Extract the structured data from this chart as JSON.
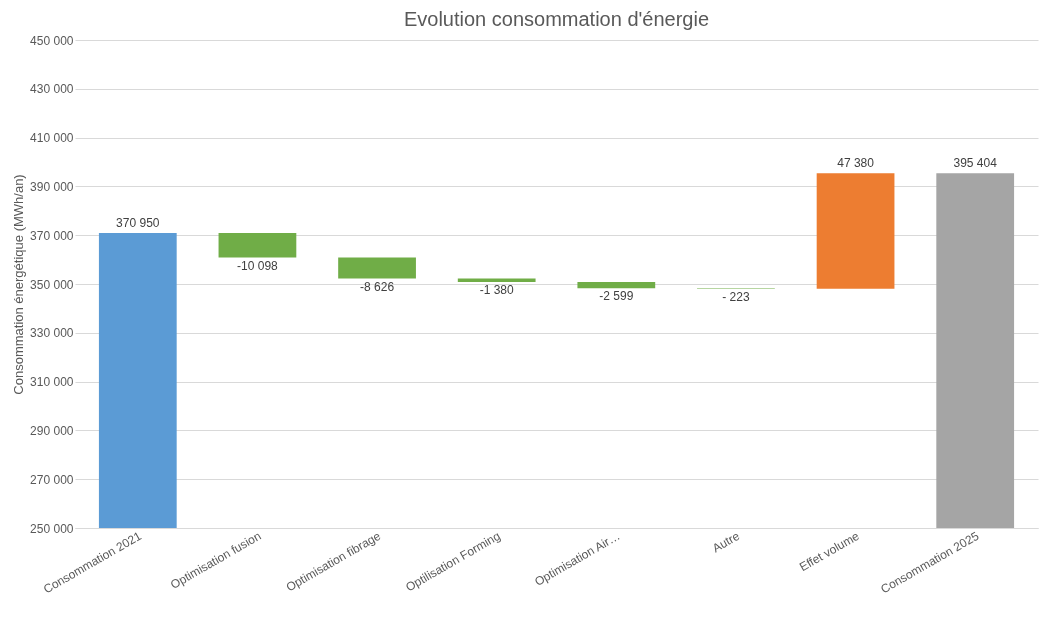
{
  "chart_data": {
    "type": "bar",
    "title": "Evolution consommation d'énergie",
    "ylabel": "Consommation énergétique (MWh/an)",
    "categories": [
      "Consommation 2021",
      "Optimisation fusion",
      "Optimisation fibrage",
      "Optilisation Forming",
      "Optimisation Air…",
      "Autre",
      "Effet volume",
      "Consommation 2025"
    ],
    "values": [
      370950,
      -10098,
      -8626,
      -1380,
      -2599,
      -223,
      47380,
      395404
    ],
    "base": [
      null,
      370950,
      360852,
      352226,
      350846,
      348247,
      348024,
      null
    ],
    "colors": [
      "#5b9bd5",
      "#70ad47",
      "#70ad47",
      "#70ad47",
      "#70ad47",
      "#70ad47",
      "#ed7d31",
      "#a5a5a5"
    ],
    "value_labels": [
      "370 950",
      "-10 098",
      "-8 626",
      "-1 380",
      "-2 599",
      "- 223",
      "47 380",
      "395 404"
    ],
    "ylim": [
      250000,
      450000
    ],
    "yticks": [
      {
        "value": 250000,
        "label": "250 000"
      },
      {
        "value": 270000,
        "label": "270 000"
      },
      {
        "value": 290000,
        "label": "290 000"
      },
      {
        "value": 310000,
        "label": "310 000"
      },
      {
        "value": 330000,
        "label": "330 000"
      },
      {
        "value": 350000,
        "label": "350 000"
      },
      {
        "value": 370000,
        "label": "370 000"
      },
      {
        "value": 390000,
        "label": "390 000"
      },
      {
        "value": 410000,
        "label": "410 000"
      },
      {
        "value": 430000,
        "label": "430 000"
      },
      {
        "value": 450000,
        "label": "450 000"
      }
    ],
    "grid": "y"
  }
}
